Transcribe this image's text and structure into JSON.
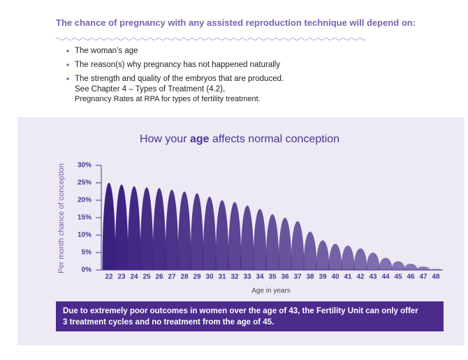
{
  "header": {
    "title": "The chance of pregnancy with any assisted reproduction technique will depend on:"
  },
  "bullets": [
    "The woman’s age",
    "The reason(s) why pregnancy has not happened naturally",
    "The strength and quality of the embryos that are produced."
  ],
  "bullet_note": [
    "See Chapter 4 – Types of Treatment (4.2),",
    "Pregnancy Rates at RPA for types of fertility treatment."
  ],
  "chart_data": {
    "type": "bell",
    "title": [
      "How your",
      "age",
      "affects normal conception"
    ],
    "x_label": "Age in years",
    "y_label": "Per month chance of conception",
    "categories": [
      "22",
      "23",
      "24",
      "25",
      "26",
      "27",
      "28",
      "29",
      "30",
      "31",
      "32",
      "33",
      "34",
      "35",
      "36",
      "37",
      "38",
      "39",
      "40",
      "41",
      "42",
      "43",
      "44",
      "45",
      "46",
      "47",
      "48"
    ],
    "values": [
      25,
      24.5,
      24,
      23.7,
      23.5,
      23,
      22.5,
      22,
      21,
      20,
      19.5,
      18.5,
      17.5,
      16,
      15,
      14,
      11,
      8.5,
      7.5,
      7,
      6.2,
      5,
      3.5,
      2.5,
      1.8,
      1,
      0.3
    ],
    "color": "#3b217e",
    "ylim": [
      0,
      30
    ],
    "yticks": [
      {
        "value": 0,
        "label": "0%"
      },
      {
        "value": 5,
        "label": "5%"
      },
      {
        "value": 10,
        "label": "10%"
      },
      {
        "value": 15,
        "label": "15%"
      },
      {
        "value": 20,
        "label": "20%"
      },
      {
        "value": 25,
        "label": "25%"
      },
      {
        "value": 30,
        "label": "30%"
      }
    ]
  },
  "note": [
    "Due to extremely poor outcomes in women over the age of 43, the Fertility Unit can only offer",
    "3 treatment cycles and no treatment from the age of 45."
  ]
}
